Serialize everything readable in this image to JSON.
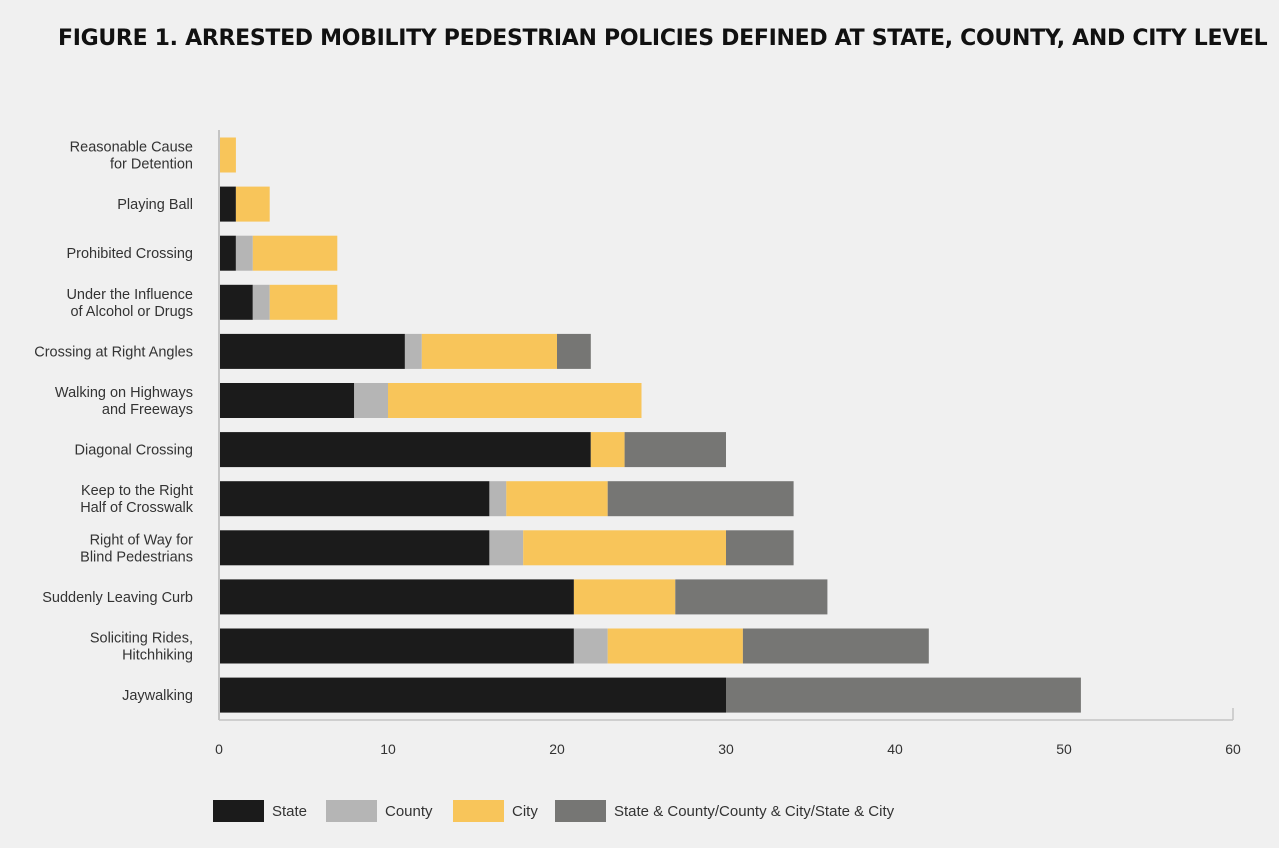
{
  "chart_data": {
    "type": "bar",
    "orientation": "horizontal",
    "stacked": true,
    "title": "FIGURE 1. ARRESTED MOBILITY PEDESTRIAN POLICIES DEFINED AT STATE, COUNTY, AND CITY LEVEL",
    "categories": [
      [
        "Reasonable Cause",
        "for Detention"
      ],
      [
        "Playing Ball"
      ],
      [
        "Prohibited Crossing"
      ],
      [
        "Under the Influence",
        "of Alcohol or Drugs"
      ],
      [
        "Crossing at Right Angles"
      ],
      [
        "Walking on Highways",
        "and Freeways"
      ],
      [
        "Diagonal Crossing"
      ],
      [
        "Keep to the Right",
        "Half of Crosswalk"
      ],
      [
        "Right of Way for",
        "Blind Pedestrians"
      ],
      [
        "Suddenly Leaving Curb"
      ],
      [
        "Soliciting Rides,",
        "Hitchhiking"
      ],
      [
        "Jaywalking"
      ]
    ],
    "series": [
      {
        "name": "State",
        "color": "#1b1b1b",
        "values": [
          0,
          1,
          1,
          2,
          11,
          8,
          22,
          16,
          16,
          21,
          21,
          30
        ]
      },
      {
        "name": "County",
        "color": "#b5b5b5",
        "values": [
          0,
          0,
          1,
          1,
          1,
          2,
          0,
          1,
          2,
          0,
          2,
          0
        ]
      },
      {
        "name": "City",
        "color": "#f8c55a",
        "values": [
          1,
          2,
          5,
          4,
          8,
          15,
          2,
          6,
          12,
          6,
          8,
          0
        ]
      },
      {
        "name": "State & County/County & City/State & City",
        "color": "#767674",
        "values": [
          0,
          0,
          0,
          0,
          2,
          0,
          6,
          11,
          4,
          9,
          11,
          21
        ]
      }
    ],
    "xlim": [
      0,
      60
    ],
    "xticks": [
      "0",
      "10",
      "20",
      "30",
      "40",
      "50",
      "60"
    ],
    "xlabel": "",
    "ylabel": "",
    "grid": false,
    "legend": "bottom"
  }
}
